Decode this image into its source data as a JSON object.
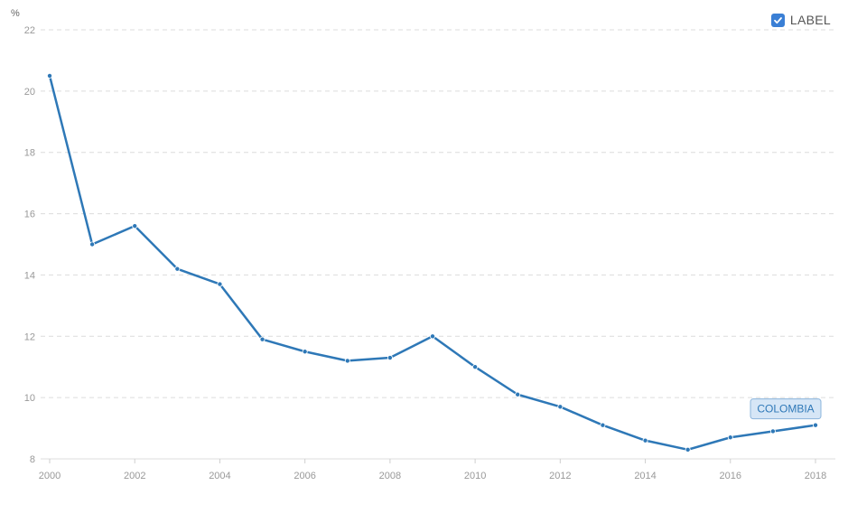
{
  "legend": {
    "label": "LABEL",
    "checked": true
  },
  "chart_data": {
    "type": "line",
    "ylabel": "%",
    "ylim": [
      8,
      22
    ],
    "yticks": [
      8,
      10,
      12,
      14,
      16,
      18,
      20,
      22
    ],
    "xlim": [
      2000,
      2018
    ],
    "xticks": [
      2000,
      2002,
      2004,
      2006,
      2008,
      2010,
      2012,
      2014,
      2016,
      2018
    ],
    "grid": true,
    "series": [
      {
        "name": "COLOMBIA",
        "color": "#2e78b7",
        "x": [
          2000,
          2001,
          2002,
          2003,
          2004,
          2005,
          2006,
          2007,
          2008,
          2009,
          2010,
          2011,
          2012,
          2013,
          2014,
          2015,
          2016,
          2017,
          2018
        ],
        "values": [
          20.5,
          15.0,
          15.6,
          14.2,
          13.7,
          11.9,
          11.5,
          11.2,
          11.3,
          12.0,
          11.0,
          10.1,
          9.7,
          9.1,
          8.6,
          8.3,
          8.7,
          8.9,
          9.1
        ]
      }
    ],
    "series_label": {
      "text": "COLOMBIA",
      "background": "#d6e6f6",
      "border": "#8ab4dc"
    }
  }
}
